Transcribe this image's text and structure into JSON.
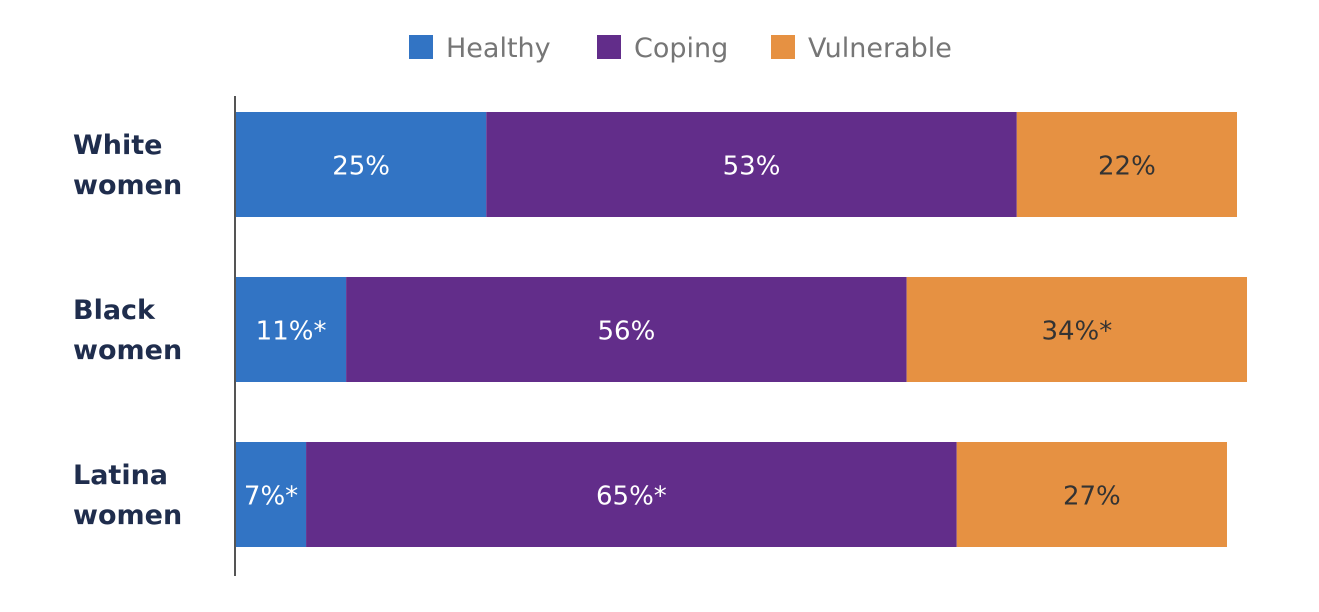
{
  "chart_data": {
    "type": "bar",
    "orientation": "horizontal",
    "stacked": true,
    "categories": [
      [
        "White",
        "women"
      ],
      [
        "Black",
        "women"
      ],
      [
        "Latina",
        "women"
      ]
    ],
    "series": [
      {
        "name": "Healthy",
        "color": "#3274c4",
        "label_color": "#ffffff",
        "values": [
          25,
          11,
          7
        ],
        "labels": [
          "25%",
          "11%*",
          "7%*"
        ]
      },
      {
        "name": "Coping",
        "color": "#622d8a",
        "label_color": "#ffffff",
        "values": [
          53,
          56,
          65
        ],
        "labels": [
          "53%",
          "56%",
          "65%*"
        ]
      },
      {
        "name": "Vulnerable",
        "color": "#e69142",
        "label_color": "#333333",
        "values": [
          22,
          34,
          27
        ],
        "labels": [
          "22%",
          "34%*",
          "27%"
        ]
      }
    ],
    "xlim": [
      0,
      100
    ],
    "grid": false,
    "legend_position": "top-center"
  }
}
